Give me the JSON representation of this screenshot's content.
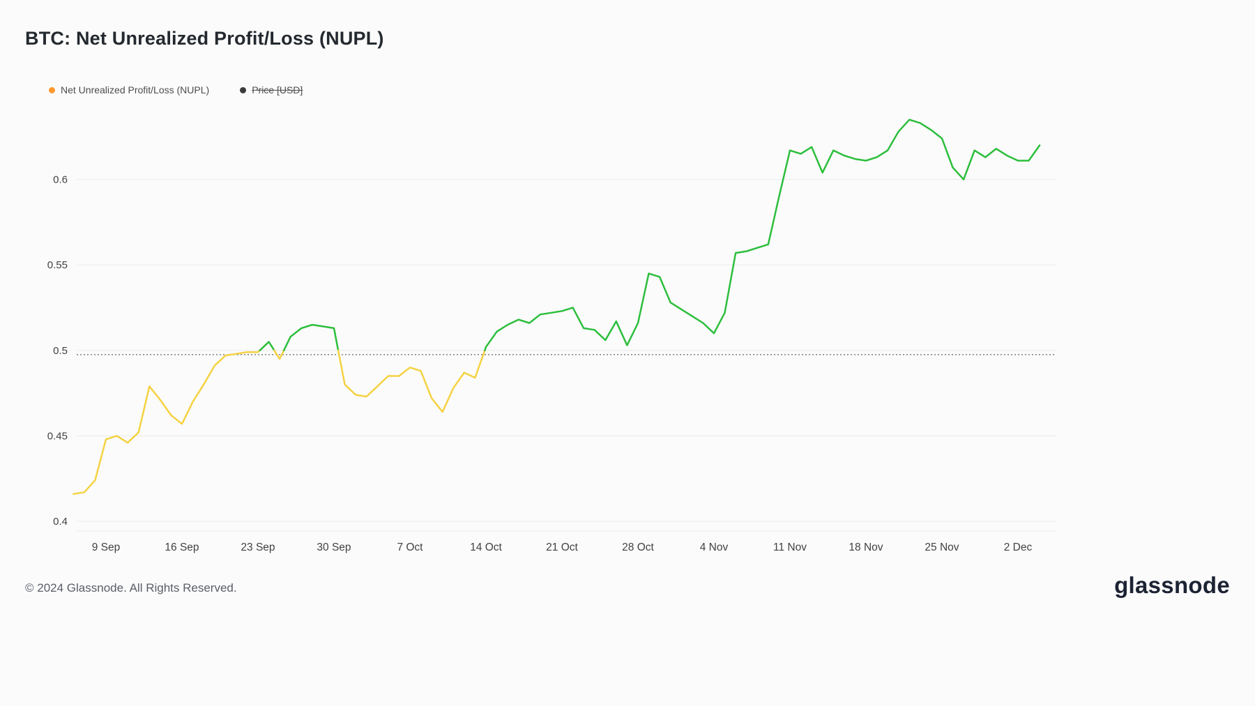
{
  "page": {
    "title": "BTC: Net Unrealized Profit/Loss (NUPL)",
    "footer_copyright": "© 2024 Glassnode. All Rights Reserved.",
    "brand": "glassnode"
  },
  "legend": {
    "items": [
      {
        "label": "Net Unrealized Profit/Loss (NUPL)",
        "color": "#ff9830",
        "enabled": true
      },
      {
        "label": "Price [USD]",
        "color": "#3b3b3b",
        "enabled": false
      }
    ]
  },
  "chart_data": {
    "type": "line",
    "title": "BTC: Net Unrealized Profit/Loss (NUPL)",
    "ylabel": "",
    "xlabel": "",
    "ylim": [
      0.395,
      0.645
    ],
    "grid": true,
    "threshold": 0.5,
    "threshold_line_value": 0.4975,
    "colors": {
      "above": "#2cbe3c",
      "below": "#f5d242",
      "grid": "#ebebeb",
      "dotted": "#3f3f3f",
      "axis_text": "#414141"
    },
    "yticks": [
      {
        "v": 0.4,
        "label": "0.4"
      },
      {
        "v": 0.45,
        "label": "0.45"
      },
      {
        "v": 0.5,
        "label": "0.5"
      },
      {
        "v": 0.55,
        "label": "0.55"
      },
      {
        "v": 0.6,
        "label": "0.6"
      }
    ],
    "xticks": [
      {
        "label": "9 Sep",
        "day": 3
      },
      {
        "label": "16 Sep",
        "day": 10
      },
      {
        "label": "23 Sep",
        "day": 17
      },
      {
        "label": "30 Sep",
        "day": 24
      },
      {
        "label": "7 Oct",
        "day": 31
      },
      {
        "label": "14 Oct",
        "day": 38
      },
      {
        "label": "21 Oct",
        "day": 45
      },
      {
        "label": "28 Oct",
        "day": 52
      },
      {
        "label": "4 Nov",
        "day": 59
      },
      {
        "label": "11 Nov",
        "day": 66
      },
      {
        "label": "18 Nov",
        "day": 73
      },
      {
        "label": "25 Nov",
        "day": 80
      },
      {
        "label": "2 Dec",
        "day": 87
      }
    ],
    "series": [
      {
        "name": "Net Unrealized Profit/Loss (NUPL)",
        "dates": [
          "6 Sep",
          "7 Sep",
          "8 Sep",
          "9 Sep",
          "10 Sep",
          "11 Sep",
          "12 Sep",
          "13 Sep",
          "14 Sep",
          "15 Sep",
          "16 Sep",
          "17 Sep",
          "18 Sep",
          "19 Sep",
          "20 Sep",
          "21 Sep",
          "22 Sep",
          "23 Sep",
          "24 Sep",
          "25 Sep",
          "26 Sep",
          "27 Sep",
          "28 Sep",
          "29 Sep",
          "30 Sep",
          "1 Oct",
          "2 Oct",
          "3 Oct",
          "4 Oct",
          "5 Oct",
          "6 Oct",
          "7 Oct",
          "8 Oct",
          "9 Oct",
          "10 Oct",
          "11 Oct",
          "12 Oct",
          "13 Oct",
          "14 Oct",
          "15 Oct",
          "16 Oct",
          "17 Oct",
          "18 Oct",
          "19 Oct",
          "20 Oct",
          "21 Oct",
          "22 Oct",
          "23 Oct",
          "24 Oct",
          "25 Oct",
          "26 Oct",
          "27 Oct",
          "28 Oct",
          "29 Oct",
          "30 Oct",
          "31 Oct",
          "1 Nov",
          "2 Nov",
          "3 Nov",
          "4 Nov",
          "5 Nov",
          "6 Nov",
          "7 Nov",
          "8 Nov",
          "9 Nov",
          "10 Nov",
          "11 Nov",
          "12 Nov",
          "13 Nov",
          "14 Nov",
          "15 Nov",
          "16 Nov",
          "17 Nov",
          "18 Nov",
          "19 Nov",
          "20 Nov",
          "21 Nov",
          "22 Nov",
          "23 Nov",
          "24 Nov",
          "25 Nov",
          "26 Nov",
          "27 Nov",
          "28 Nov",
          "29 Nov",
          "30 Nov",
          "1 Dec",
          "2 Dec",
          "3 Dec",
          "4 Dec"
        ],
        "values": [
          0.416,
          0.417,
          0.424,
          0.448,
          0.45,
          0.446,
          0.452,
          0.479,
          0.471,
          0.462,
          0.457,
          0.47,
          0.48,
          0.491,
          0.497,
          0.498,
          0.499,
          0.499,
          0.505,
          0.495,
          0.508,
          0.513,
          0.515,
          0.514,
          0.513,
          0.48,
          0.474,
          0.473,
          0.479,
          0.485,
          0.485,
          0.49,
          0.488,
          0.472,
          0.464,
          0.478,
          0.487,
          0.484,
          0.502,
          0.511,
          0.515,
          0.518,
          0.516,
          0.521,
          0.522,
          0.523,
          0.525,
          0.513,
          0.512,
          0.506,
          0.517,
          0.503,
          0.516,
          0.545,
          0.543,
          0.528,
          0.524,
          0.52,
          0.516,
          0.51,
          0.522,
          0.557,
          0.558,
          0.56,
          0.562,
          0.59,
          0.617,
          0.615,
          0.619,
          0.604,
          0.617,
          0.614,
          0.612,
          0.611,
          0.613,
          0.617,
          0.628,
          0.635,
          0.633,
          0.629,
          0.624,
          0.607,
          0.6,
          0.617,
          0.613,
          0.618,
          0.614,
          0.611,
          0.611,
          0.62
        ]
      }
    ],
    "legend_position": "top-left"
  }
}
